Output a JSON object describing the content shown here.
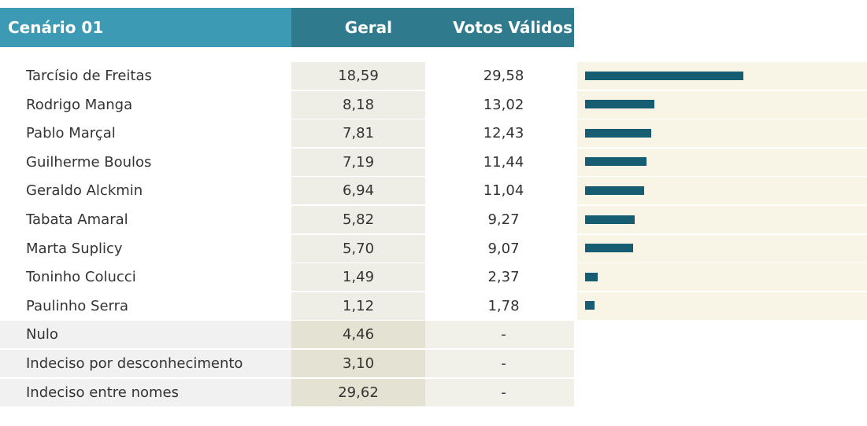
{
  "header": {
    "title": "Cenário 01",
    "columns": [
      "Geral",
      "Votos Válidos"
    ]
  },
  "rows": [
    {
      "name": "Tarcísio de Freitas",
      "geral": "18,59",
      "validos": "29,58"
    },
    {
      "name": "Rodrigo Manga",
      "geral": "8,18",
      "validos": "13,02"
    },
    {
      "name": "Pablo Marçal",
      "geral": "7,81",
      "validos": "12,43"
    },
    {
      "name": "Guilherme Boulos",
      "geral": "7,19",
      "validos": "11,44"
    },
    {
      "name": "Geraldo Alckmin",
      "geral": "6,94",
      "validos": "11,04"
    },
    {
      "name": "Tabata Amaral",
      "geral": "5,82",
      "validos": "9,27"
    },
    {
      "name": "Marta Suplicy",
      "geral": "5,70",
      "validos": "9,07"
    },
    {
      "name": "Toninho Colucci",
      "geral": "1,49",
      "validos": "2,37"
    },
    {
      "name": "Paulinho Serra",
      "geral": "1,12",
      "validos": "1,78"
    },
    {
      "name": "Nulo",
      "geral": "4,46",
      "validos": "-"
    },
    {
      "name": "Indeciso por desconhecimento",
      "geral": "3,10",
      "validos": "-"
    },
    {
      "name": "Indeciso entre nomes",
      "geral": "29,62",
      "validos": "-"
    }
  ]
}
